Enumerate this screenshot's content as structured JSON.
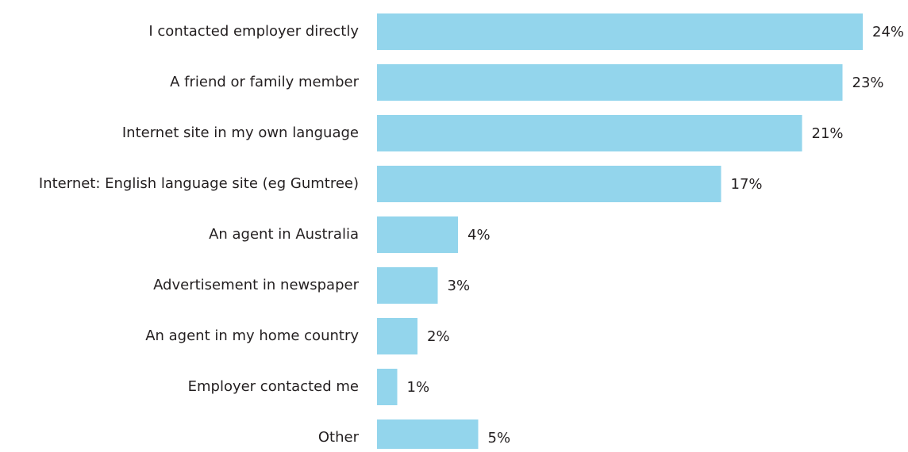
{
  "chart_data": {
    "type": "bar",
    "orientation": "horizontal",
    "categories": [
      "I contacted employer directly",
      "A friend or family member",
      "Internet site in my own language",
      "Internet: English language site (eg Gumtree)",
      "An agent in Australia",
      "Advertisement in newspaper",
      "An agent in my home country",
      "Employer contacted me",
      "Other"
    ],
    "values": [
      24,
      23,
      21,
      17,
      4,
      3,
      2,
      1,
      5
    ],
    "value_labels": [
      "24%",
      "23%",
      "21%",
      "17%",
      "4%",
      "3%",
      "2%",
      "1%",
      "5%"
    ],
    "color": "#93d5ec",
    "xlim": [
      0,
      24
    ]
  }
}
